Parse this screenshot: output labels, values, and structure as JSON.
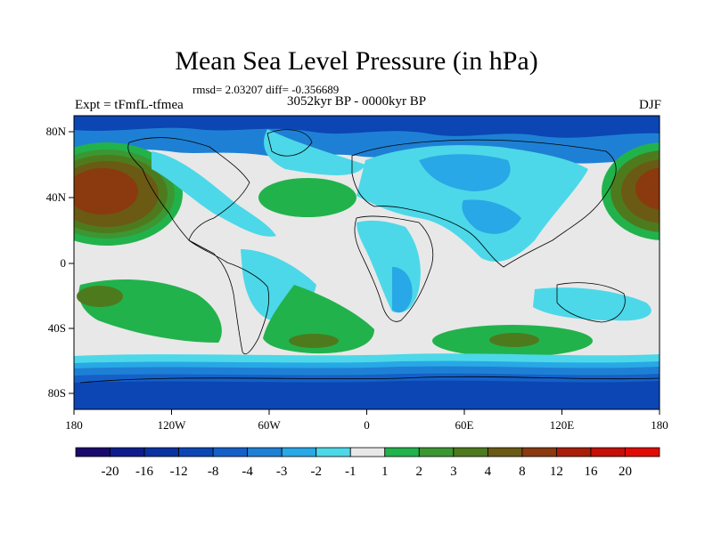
{
  "title": "Mean Sea Level Pressure (in hPa)",
  "stats": "rmsd= 2.03207 diff= -0.356689",
  "experiment": "Expt = tFmfL-tfmea",
  "period": "3052kyr BP - 0000kyr BP",
  "season": "DJF",
  "axes": {
    "x_ticks": [
      "180",
      "120W",
      "60W",
      "0",
      "60E",
      "120E",
      "180"
    ],
    "y_ticks": [
      "80N",
      "40N",
      "0",
      "40S",
      "80S"
    ]
  },
  "colorbar": {
    "labels": [
      "-20",
      "-16",
      "-12",
      "-8",
      "-4",
      "-3",
      "-2",
      "-1",
      "1",
      "2",
      "3",
      "4",
      "8",
      "12",
      "16",
      "20"
    ],
    "colors": [
      "#1a0a6e",
      "#0d1e8c",
      "#0a32a0",
      "#0b46b4",
      "#1460c8",
      "#1e80d4",
      "#28a8e6",
      "#4cd8e8",
      "#e8e8e8",
      "#22b24c",
      "#3c9632",
      "#4e7a1e",
      "#6a5a14",
      "#8a3a0e",
      "#a81e0a",
      "#c40e06",
      "#e00c04"
    ]
  },
  "palette": {
    "background": "#e8e8e8",
    "land_outline": "#000000"
  }
}
